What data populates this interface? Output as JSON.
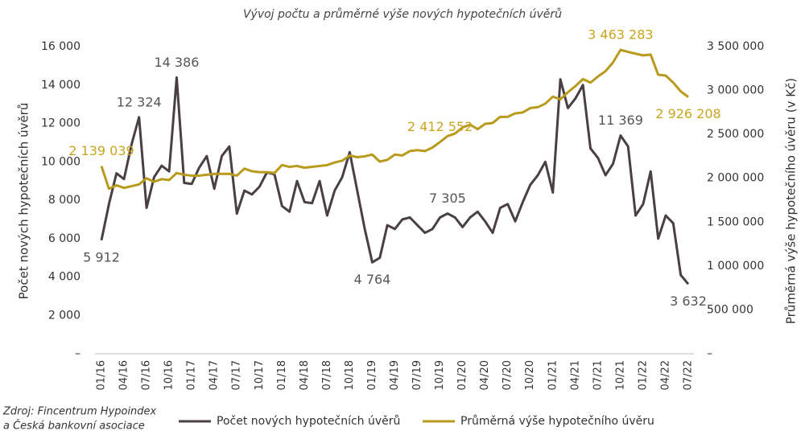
{
  "chart_data": {
    "type": "line",
    "title": "Vývoj počtu a průměrné výše nových hypotečních úvěrů",
    "ylabel": "Počet nových hypotečních úvěrů",
    "y2label": "Průměrná výše hypotečního úvěru (v Kč)",
    "source": [
      "Zdroj: Fincentrum Hypoindex",
      "a Česká bankovní asociace"
    ],
    "categories": [
      "01/16",
      null,
      null,
      "04/16",
      null,
      null,
      "07/16",
      null,
      null,
      "10/16",
      null,
      null,
      "01/17",
      null,
      null,
      "04/17",
      null,
      null,
      "07/17",
      null,
      null,
      "10/17",
      null,
      null,
      "01/18",
      null,
      null,
      "04/18",
      null,
      null,
      "07/18",
      null,
      null,
      "10/18",
      null,
      null,
      "01/19",
      null,
      null,
      "04/19",
      null,
      null,
      "07/19",
      null,
      null,
      "10/19",
      null,
      null,
      "01/20",
      null,
      null,
      "04/20",
      null,
      null,
      "07/20",
      null,
      null,
      "10/20",
      null,
      null,
      "01/21",
      null,
      null,
      "04/21",
      null,
      null,
      "07/21",
      null,
      null,
      "10/21",
      null,
      null,
      "01/22",
      null,
      null,
      "04/22",
      null,
      null,
      "07/22"
    ],
    "series": [
      {
        "name": "Počet nových hypotečních úvěrů",
        "color": "#4a3f44",
        "values": [
          5912,
          7800,
          9400,
          9100,
          10900,
          12324,
          7600,
          9200,
          9800,
          9500,
          14386,
          8900,
          8850,
          9700,
          10300,
          8600,
          10300,
          10800,
          7300,
          8500,
          8300,
          8700,
          9450,
          9350,
          7700,
          7400,
          9000,
          7900,
          7850,
          9000,
          7200,
          8500,
          9200,
          10500,
          8500,
          6500,
          4764,
          5000,
          6700,
          6500,
          7000,
          7100,
          6700,
          6300,
          6500,
          7100,
          7305,
          7100,
          6600,
          7100,
          7400,
          6900,
          6300,
          7600,
          7800,
          6900,
          7900,
          8800,
          9300,
          10000,
          8400,
          14300,
          12800,
          13300,
          14000,
          10700,
          10200,
          9300,
          9900,
          11369,
          10800,
          7200,
          7800,
          9500,
          6000,
          7200,
          6800,
          4100,
          3632
        ],
        "value_labels": [
          "5 912",
          null,
          null,
          null,
          null,
          "12 324",
          null,
          null,
          null,
          null,
          "14 386",
          null,
          null,
          null,
          null,
          null,
          null,
          null,
          null,
          null,
          null,
          null,
          null,
          null,
          null,
          null,
          null,
          null,
          null,
          null,
          null,
          null,
          null,
          null,
          null,
          null,
          "4 764",
          null,
          null,
          null,
          null,
          null,
          null,
          null,
          null,
          null,
          "7 305",
          null,
          null,
          null,
          null,
          null,
          null,
          null,
          null,
          null,
          null,
          null,
          null,
          null,
          null,
          null,
          null,
          null,
          null,
          null,
          null,
          null,
          null,
          "11 369",
          null,
          null,
          null,
          null,
          null,
          null,
          null,
          null,
          "3 632"
        ]
      },
      {
        "name": "Průměrná výše hypotečního úvěru",
        "color": "#b89a1c",
        "axis": "y2",
        "values": [
          2139039,
          1880000,
          1920000,
          1890000,
          1910000,
          1930000,
          2000000,
          1960000,
          1990000,
          1980000,
          2060000,
          2040000,
          2030000,
          2030000,
          2040000,
          2050000,
          2050000,
          2050000,
          2030000,
          2110000,
          2080000,
          2070000,
          2070000,
          2060000,
          2150000,
          2130000,
          2140000,
          2120000,
          2130000,
          2140000,
          2150000,
          2180000,
          2200000,
          2260000,
          2240000,
          2250000,
          2270000,
          2190000,
          2210000,
          2270000,
          2260000,
          2310000,
          2320000,
          2310000,
          2350000,
          2412552,
          2480000,
          2510000,
          2580000,
          2610000,
          2560000,
          2620000,
          2630000,
          2700000,
          2700000,
          2740000,
          2750000,
          2800000,
          2810000,
          2850000,
          2930000,
          2900000,
          2980000,
          3050000,
          3130000,
          3090000,
          3160000,
          3220000,
          3320000,
          3463283,
          3440000,
          3420000,
          3400000,
          3410000,
          3180000,
          3170000,
          3090000,
          2990000,
          2926208
        ],
        "value_labels": [
          "2 139 039",
          null,
          null,
          null,
          null,
          null,
          null,
          null,
          null,
          null,
          null,
          null,
          null,
          null,
          null,
          null,
          null,
          null,
          null,
          null,
          null,
          null,
          null,
          null,
          null,
          null,
          null,
          null,
          null,
          null,
          null,
          null,
          null,
          null,
          null,
          null,
          null,
          null,
          null,
          null,
          null,
          null,
          null,
          null,
          null,
          "2 412 552",
          null,
          null,
          null,
          null,
          null,
          null,
          null,
          null,
          null,
          null,
          null,
          null,
          null,
          null,
          null,
          null,
          null,
          null,
          null,
          null,
          null,
          null,
          null,
          "3 463 283",
          null,
          null,
          null,
          null,
          null,
          null,
          null,
          null,
          "2 926 208"
        ]
      }
    ],
    "ylim": [
      0,
      16000
    ],
    "yticks": [
      {
        "value": 0,
        "label": "–"
      },
      {
        "value": 2000,
        "label": "2 000"
      },
      {
        "value": 4000,
        "label": "4 000"
      },
      {
        "value": 6000,
        "label": "6 000"
      },
      {
        "value": 8000,
        "label": "8 000"
      },
      {
        "value": 10000,
        "label": "10 000"
      },
      {
        "value": 12000,
        "label": "12 000"
      },
      {
        "value": 14000,
        "label": "14 000"
      },
      {
        "value": 16000,
        "label": "16 000"
      }
    ],
    "y2lim": [
      0,
      3500000
    ],
    "y2ticks": [
      {
        "value": 0,
        "label": "–"
      },
      {
        "value": 500000,
        "label": "500 000"
      },
      {
        "value": 1000000,
        "label": "1 000 000"
      },
      {
        "value": 1500000,
        "label": "1 500 000"
      },
      {
        "value": 2000000,
        "label": "2 000 000"
      },
      {
        "value": 2500000,
        "label": "2 500 000"
      },
      {
        "value": 3000000,
        "label": "3 000 000"
      },
      {
        "value": 3500000,
        "label": "3 500 000"
      }
    ],
    "grid": false,
    "legend": "bottom"
  }
}
